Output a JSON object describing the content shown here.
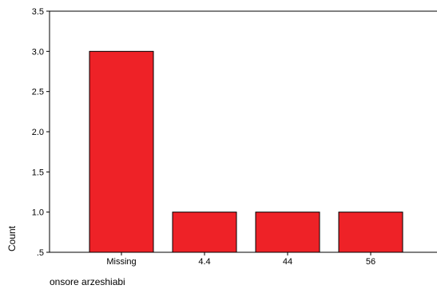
{
  "chart_data": {
    "type": "bar",
    "categories": [
      "Missing",
      "4.4",
      "44",
      "56"
    ],
    "values": [
      3,
      1,
      1,
      1
    ],
    "xlabel": "onsore arzeshiabi",
    "ylabel": "Count",
    "ylim": [
      0.5,
      3.5
    ],
    "yticks": [
      0.5,
      1.0,
      1.5,
      2.0,
      2.5,
      3.0,
      3.5
    ],
    "ytick_labels": [
      ".5",
      "1.0",
      "1.5",
      "2.0",
      "2.5",
      "3.0",
      "3.5"
    ],
    "bar_color": "#ee2227",
    "grid": false,
    "legend": "none"
  }
}
